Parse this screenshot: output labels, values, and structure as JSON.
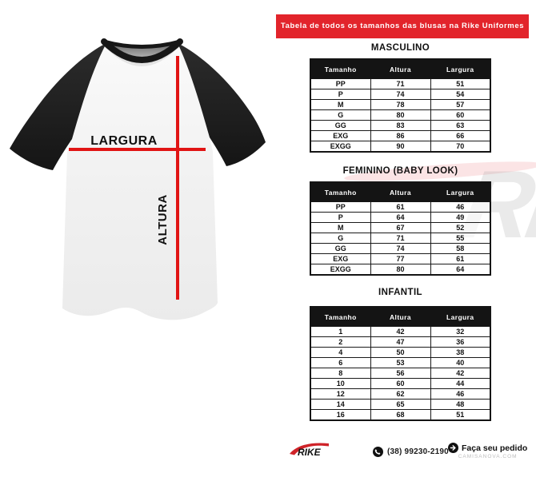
{
  "banner": {
    "text": "Tabela de todos os tamanhos das blusas na Rike Uniformes",
    "bg_color": "#e2242b"
  },
  "shirt": {
    "width_label": "LARGURA",
    "height_label": "ALTURA",
    "line_color": "#e11414",
    "sleeve_color": "#1e1e1e"
  },
  "tables": [
    {
      "title": "MASCULINO",
      "headers": [
        "Tamanho",
        "Altura",
        "Largura"
      ],
      "rows": [
        [
          "PP",
          "71",
          "51"
        ],
        [
          "P",
          "74",
          "54"
        ],
        [
          "M",
          "78",
          "57"
        ],
        [
          "G",
          "80",
          "60"
        ],
        [
          "GG",
          "83",
          "63"
        ],
        [
          "EXG",
          "86",
          "66"
        ],
        [
          "EXGG",
          "90",
          "70"
        ]
      ]
    },
    {
      "title": "FEMININO (BABY LOOK)",
      "headers": [
        "Tamanho",
        "Altura",
        "Largura"
      ],
      "rows": [
        [
          "PP",
          "61",
          "46"
        ],
        [
          "P",
          "64",
          "49"
        ],
        [
          "M",
          "67",
          "52"
        ],
        [
          "G",
          "71",
          "55"
        ],
        [
          "GG",
          "74",
          "58"
        ],
        [
          "EXG",
          "77",
          "61"
        ],
        [
          "EXGG",
          "80",
          "64"
        ]
      ]
    },
    {
      "title": "INFANTIL",
      "headers": [
        "Tamanho",
        "Altura",
        "Largura"
      ],
      "rows": [
        [
          "1",
          "42",
          "32"
        ],
        [
          "2",
          "47",
          "36"
        ],
        [
          "4",
          "50",
          "38"
        ],
        [
          "6",
          "53",
          "40"
        ],
        [
          "8",
          "56",
          "42"
        ],
        [
          "10",
          "60",
          "44"
        ],
        [
          "12",
          "62",
          "46"
        ],
        [
          "14",
          "65",
          "48"
        ],
        [
          "16",
          "68",
          "51"
        ]
      ]
    }
  ],
  "footer": {
    "brand": "RIKE",
    "phone": "(38) 99230-2190",
    "cta": "Faça seu pedido",
    "cta_sub": "CAMISANOVA.COM"
  },
  "watermark": {
    "text": "RI"
  },
  "colors": {
    "table_header": "#141414",
    "banner_red": "#e2242b",
    "measure_red": "#e11414"
  }
}
